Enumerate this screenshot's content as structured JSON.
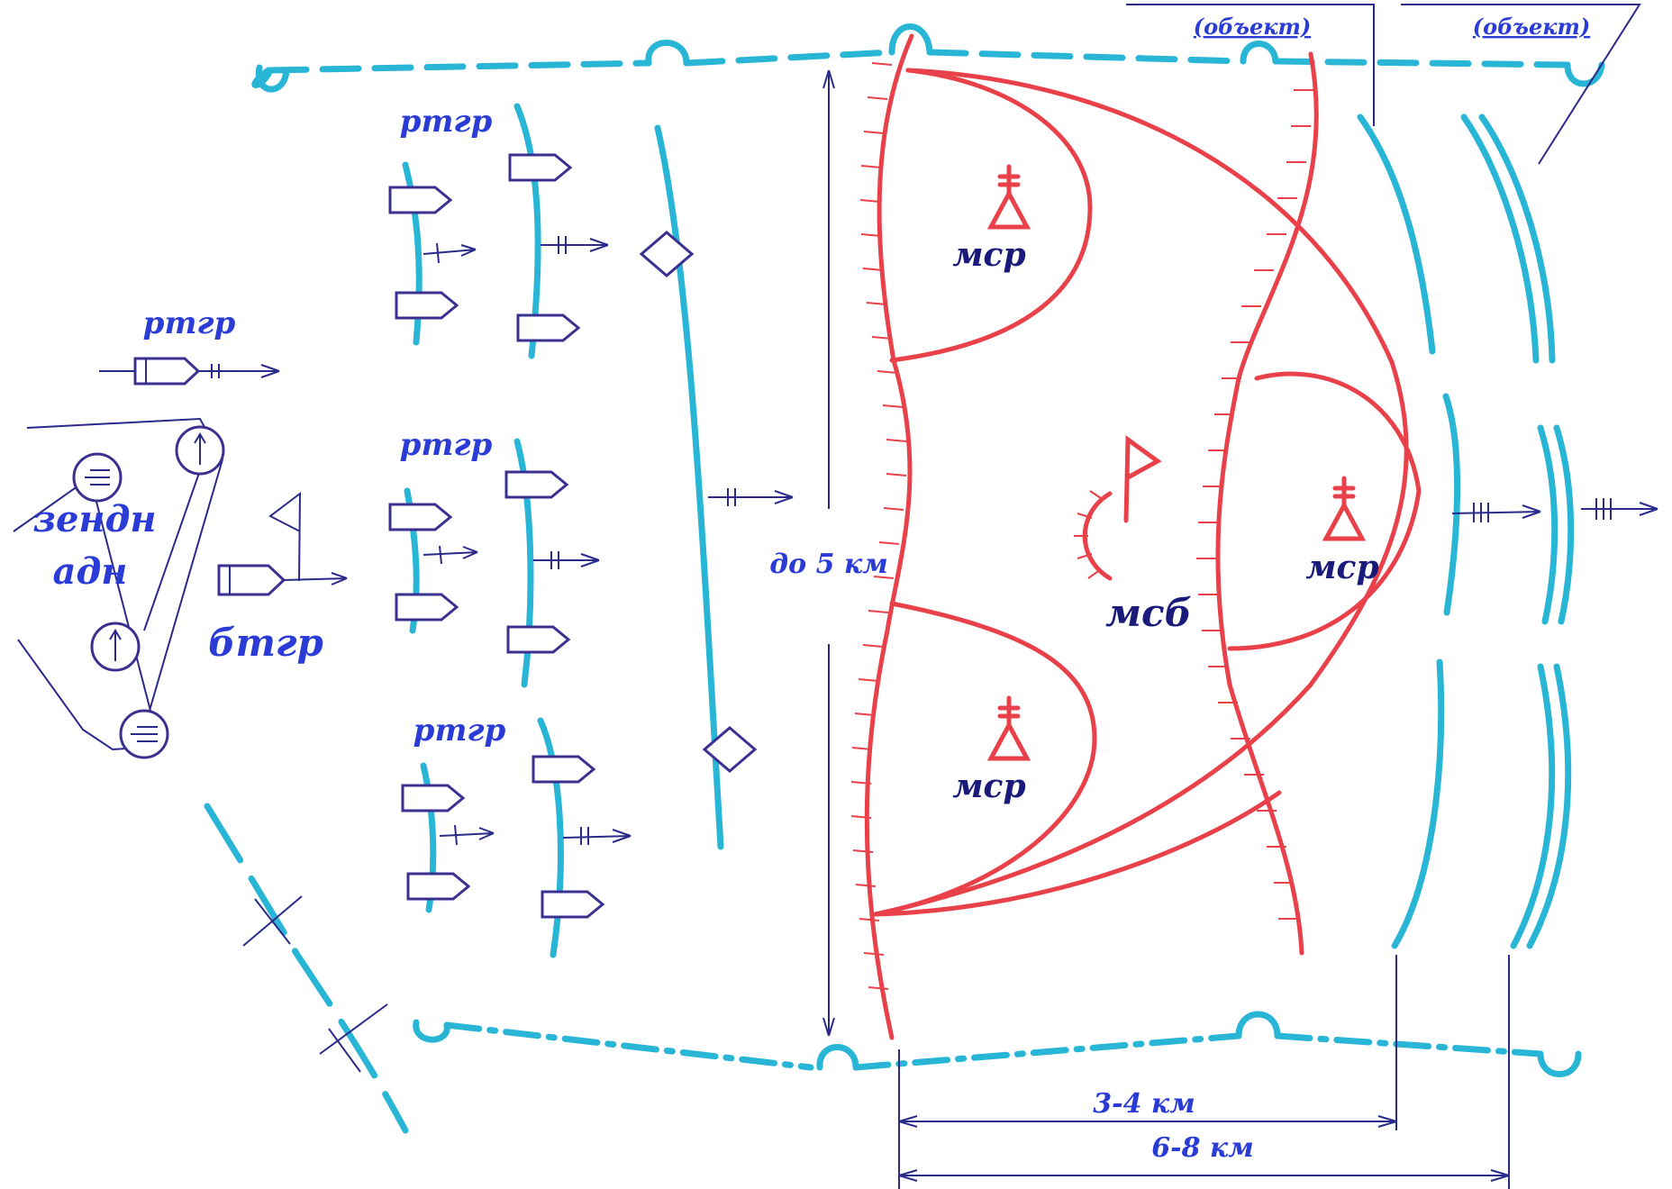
{
  "labels": {
    "objective_left": "(объект)",
    "objective_right": "(объект)",
    "rtgr_left": "ртгр",
    "rtgr_top": "ртгр",
    "rtgr_middle": "ртгр",
    "rtgr_bottom": "ртгр",
    "art_line1": "зендн",
    "art_line2": "адн",
    "btgr": "бтгр",
    "width_label": "до 5 км",
    "msb": "мсб",
    "msr_top": "мср",
    "msr_bottom": "мср",
    "msr_right": "мср",
    "dist_near": "3-4 км",
    "dist_far": "6-8 км"
  },
  "colors": {
    "text_blue": "#2b3cd6",
    "text_dark": "#1a1a7a",
    "boundary_cyan": "#29b6d6",
    "friendly_red": "#e8414a",
    "enemy_navy": "#3a3090"
  }
}
